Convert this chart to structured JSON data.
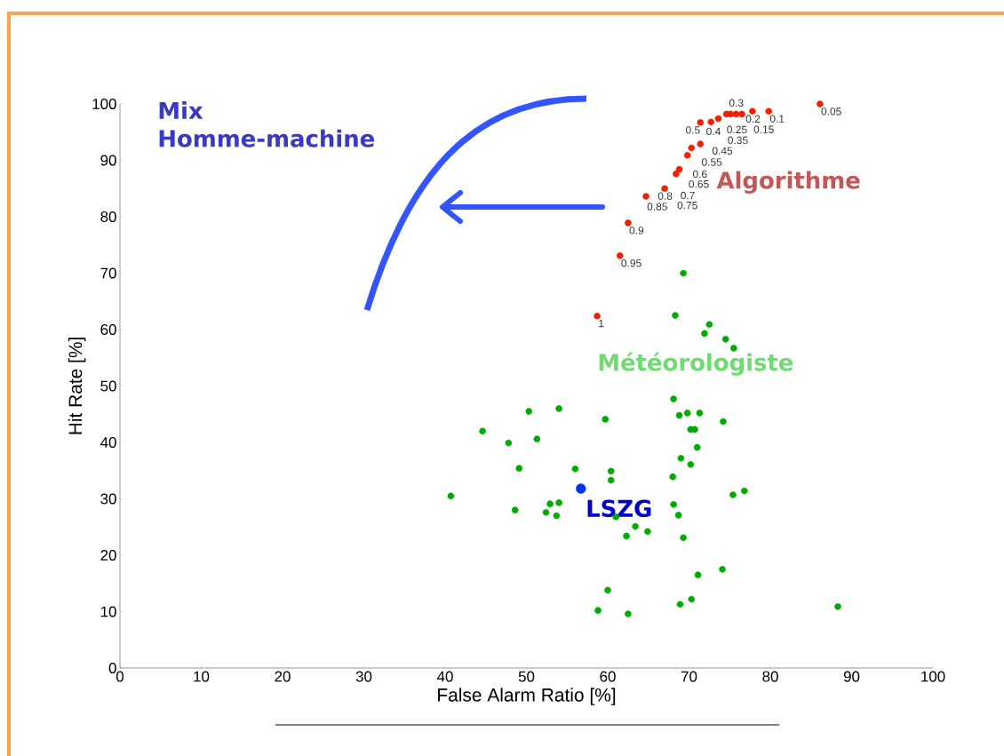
{
  "chart_data": {
    "type": "scatter",
    "xlabel": "False Alarm Ratio [%]",
    "ylabel": "Hit Rate [%]",
    "xlim": [
      0,
      100
    ],
    "ylim": [
      0,
      100
    ],
    "xticks": [
      0,
      10,
      20,
      30,
      40,
      50,
      60,
      70,
      80,
      90,
      100
    ],
    "yticks": [
      0,
      10,
      20,
      30,
      40,
      50,
      60,
      70,
      80,
      90,
      100
    ],
    "grid": false,
    "legend": false,
    "series": [
      {
        "name": "Algorithme",
        "color": "#ee2200",
        "x": [
          86.1,
          79.8,
          77.8,
          76.5,
          75.8,
          75.1,
          74.6,
          73.6,
          72.7,
          71.4,
          71.4,
          70.3,
          69.8,
          68.8,
          68.4,
          67.0,
          64.7,
          62.5,
          61.5,
          58.7
        ],
        "values": [
          100.0,
          98.7,
          98.7,
          98.2,
          98.2,
          98.2,
          98.2,
          97.4,
          96.8,
          96.7,
          92.9,
          92.2,
          90.9,
          88.4,
          87.6,
          85.0,
          83.6,
          78.9,
          73.1,
          62.4
        ]
      },
      {
        "name": "Météorologiste",
        "color": "#00aa00",
        "x": [
          69.3,
          68.3,
          72.5,
          71.9,
          74.5,
          75.5,
          68.1,
          68.8,
          69.8,
          71.3,
          74.2,
          70.2,
          70.7,
          71.0,
          69.0,
          70.2,
          68.0,
          75.4,
          76.8,
          68.1,
          68.7,
          69.3,
          71.1,
          74.1,
          70.3,
          68.9,
          62.5,
          58.8,
          60.0,
          62.3,
          63.4,
          64.9,
          61.0,
          60.4,
          60.4,
          59.7,
          56.0,
          54.0,
          50.3,
          51.3,
          47.8,
          44.6,
          49.1,
          40.7,
          48.6,
          52.9,
          54.0,
          52.4,
          53.7,
          88.3
        ],
        "values": [
          70.0,
          62.5,
          60.9,
          59.3,
          58.3,
          56.7,
          47.7,
          44.8,
          45.2,
          45.2,
          43.7,
          42.3,
          42.3,
          39.1,
          37.2,
          36.1,
          33.9,
          30.7,
          31.4,
          29.0,
          27.1,
          23.1,
          16.5,
          17.5,
          12.2,
          11.3,
          9.6,
          10.2,
          13.8,
          23.4,
          25.1,
          24.2,
          26.8,
          34.9,
          33.3,
          44.1,
          35.3,
          46.0,
          45.5,
          40.6,
          39.9,
          42.0,
          35.4,
          30.5,
          28.0,
          29.1,
          29.3,
          27.6,
          27.0,
          10.9
        ]
      },
      {
        "name": "LSZG",
        "color": "#0033ff",
        "x": [
          56.7
        ],
        "values": [
          31.8
        ]
      }
    ],
    "annotations": [
      {
        "text": "0.05",
        "x": 86.1,
        "y": 100.0
      },
      {
        "text": "0.1",
        "x": 79.8,
        "y": 98.7
      },
      {
        "text": "0.15",
        "x": 77.8,
        "y": 98.7
      },
      {
        "text": "0.2",
        "x": 76.5,
        "y": 98.2
      },
      {
        "text": "0.25",
        "x": 75.8,
        "y": 98.2
      },
      {
        "text": "0.3",
        "x": 75.1,
        "y": 98.2
      },
      {
        "text": "0.35",
        "x": 74.6,
        "y": 98.2
      },
      {
        "text": "0.4",
        "x": 73.6,
        "y": 97.4
      },
      {
        "text": "0.45",
        "x": 72.7,
        "y": 96.8
      },
      {
        "text": "0.5",
        "x": 71.4,
        "y": 96.7
      },
      {
        "text": "0.55",
        "x": 71.4,
        "y": 92.9
      },
      {
        "text": "0.6",
        "x": 70.3,
        "y": 92.2
      },
      {
        "text": "0.65",
        "x": 69.8,
        "y": 90.9
      },
      {
        "text": "0.7",
        "x": 68.8,
        "y": 88.4
      },
      {
        "text": "0.75",
        "x": 68.4,
        "y": 87.6
      },
      {
        "text": "0.8",
        "x": 67.0,
        "y": 85.0
      },
      {
        "text": "0.85",
        "x": 64.7,
        "y": 83.6
      },
      {
        "text": "0.9",
        "x": 62.5,
        "y": 78.9
      },
      {
        "text": "0.95",
        "x": 61.5,
        "y": 73.1
      },
      {
        "text": "1",
        "x": 58.7,
        "y": 62.4
      },
      "Mix",
      "Homme-machine"
    ]
  }
}
